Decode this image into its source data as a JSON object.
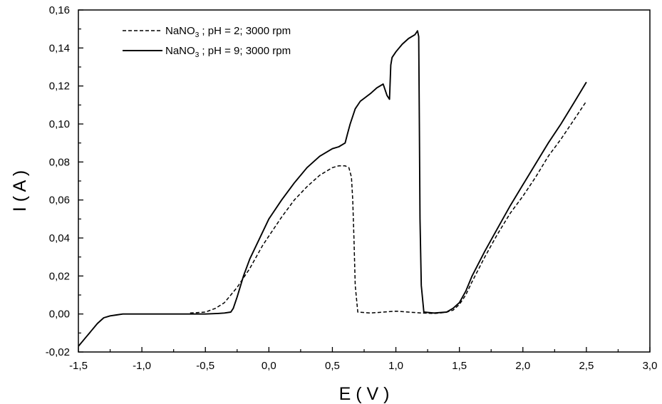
{
  "chart_data": {
    "type": "line",
    "xlabel": "E ( V )",
    "ylabel": "I ( A )",
    "xlim": [
      -1.5,
      3.0
    ],
    "ylim": [
      -0.02,
      0.16
    ],
    "x_ticks": [
      -1.5,
      -1.0,
      -0.5,
      0.0,
      0.5,
      1.0,
      1.5,
      2.0,
      2.5,
      3.0
    ],
    "x_tick_labels": [
      "-1,5",
      "-1,0",
      "-0,5",
      "0,0",
      "0,5",
      "1,0",
      "1,5",
      "2,0",
      "2,5",
      "3,0"
    ],
    "y_ticks": [
      -0.02,
      0.0,
      0.02,
      0.04,
      0.06,
      0.08,
      0.1,
      0.12,
      0.14,
      0.16
    ],
    "y_tick_labels": [
      "-0,02",
      "0,00",
      "0,02",
      "0,04",
      "0,06",
      "0,08",
      "0,10",
      "0,12",
      "0,14",
      "0,16"
    ],
    "grid": false,
    "legend_position": "top-left",
    "series": [
      {
        "name_main": "NaNO",
        "name_sub": "3",
        "name_rest": " ; pH = 2; 3000 rpm",
        "style": "dashed",
        "color": "#000000",
        "x": [
          -0.62,
          -0.5,
          -0.42,
          -0.35,
          -0.3,
          -0.25,
          -0.2,
          -0.15,
          -0.1,
          -0.05,
          0.0,
          0.1,
          0.2,
          0.3,
          0.4,
          0.5,
          0.55,
          0.6,
          0.63,
          0.65,
          0.66,
          0.67,
          0.68,
          0.7,
          0.8,
          0.9,
          1.0,
          1.1,
          1.2,
          1.3,
          1.35,
          1.4,
          1.45,
          1.5,
          1.55,
          1.6,
          1.7,
          1.8,
          1.9,
          2.0,
          2.1,
          2.2,
          2.3,
          2.4,
          2.5
        ],
        "y": [
          0.0005,
          0.001,
          0.003,
          0.006,
          0.01,
          0.014,
          0.019,
          0.024,
          0.03,
          0.036,
          0.041,
          0.051,
          0.06,
          0.067,
          0.073,
          0.077,
          0.078,
          0.078,
          0.077,
          0.072,
          0.06,
          0.04,
          0.015,
          0.001,
          0.0005,
          0.001,
          0.0015,
          0.001,
          0.0005,
          0.0003,
          0.0005,
          0.001,
          0.002,
          0.005,
          0.01,
          0.017,
          0.03,
          0.042,
          0.053,
          0.062,
          0.072,
          0.083,
          0.092,
          0.102,
          0.112
        ]
      },
      {
        "name_main": "NaNO",
        "name_sub": "3",
        "name_rest": " ; pH = 9; 3000 rpm",
        "style": "solid",
        "color": "#000000",
        "x": [
          -1.5,
          -1.45,
          -1.4,
          -1.35,
          -1.3,
          -1.25,
          -1.2,
          -1.15,
          -1.1,
          -0.8,
          -0.5,
          -0.4,
          -0.35,
          -0.3,
          -0.28,
          -0.25,
          -0.2,
          -0.15,
          -0.1,
          0.0,
          0.1,
          0.2,
          0.3,
          0.4,
          0.5,
          0.55,
          0.6,
          0.62,
          0.64,
          0.68,
          0.72,
          0.8,
          0.85,
          0.9,
          0.93,
          0.95,
          0.96,
          0.97,
          1.0,
          1.05,
          1.1,
          1.15,
          1.16,
          1.17,
          1.18,
          1.185,
          1.19,
          1.2,
          1.22,
          1.3,
          1.4,
          1.45,
          1.5,
          1.55,
          1.6,
          1.7,
          1.8,
          1.9,
          2.0,
          2.1,
          2.2,
          2.3,
          2.4,
          2.5
        ],
        "y": [
          -0.017,
          -0.013,
          -0.009,
          -0.005,
          -0.002,
          -0.001,
          -0.0005,
          0.0,
          0.0,
          0.0,
          0.0,
          0.0003,
          0.0005,
          0.001,
          0.003,
          0.009,
          0.02,
          0.029,
          0.036,
          0.05,
          0.06,
          0.069,
          0.077,
          0.083,
          0.087,
          0.088,
          0.09,
          0.095,
          0.1,
          0.108,
          0.112,
          0.116,
          0.119,
          0.121,
          0.115,
          0.113,
          0.131,
          0.135,
          0.138,
          0.142,
          0.145,
          0.147,
          0.148,
          0.149,
          0.146,
          0.1,
          0.05,
          0.015,
          0.001,
          0.0005,
          0.001,
          0.003,
          0.006,
          0.012,
          0.02,
          0.033,
          0.045,
          0.057,
          0.068,
          0.079,
          0.09,
          0.1,
          0.111,
          0.122
        ]
      }
    ]
  }
}
